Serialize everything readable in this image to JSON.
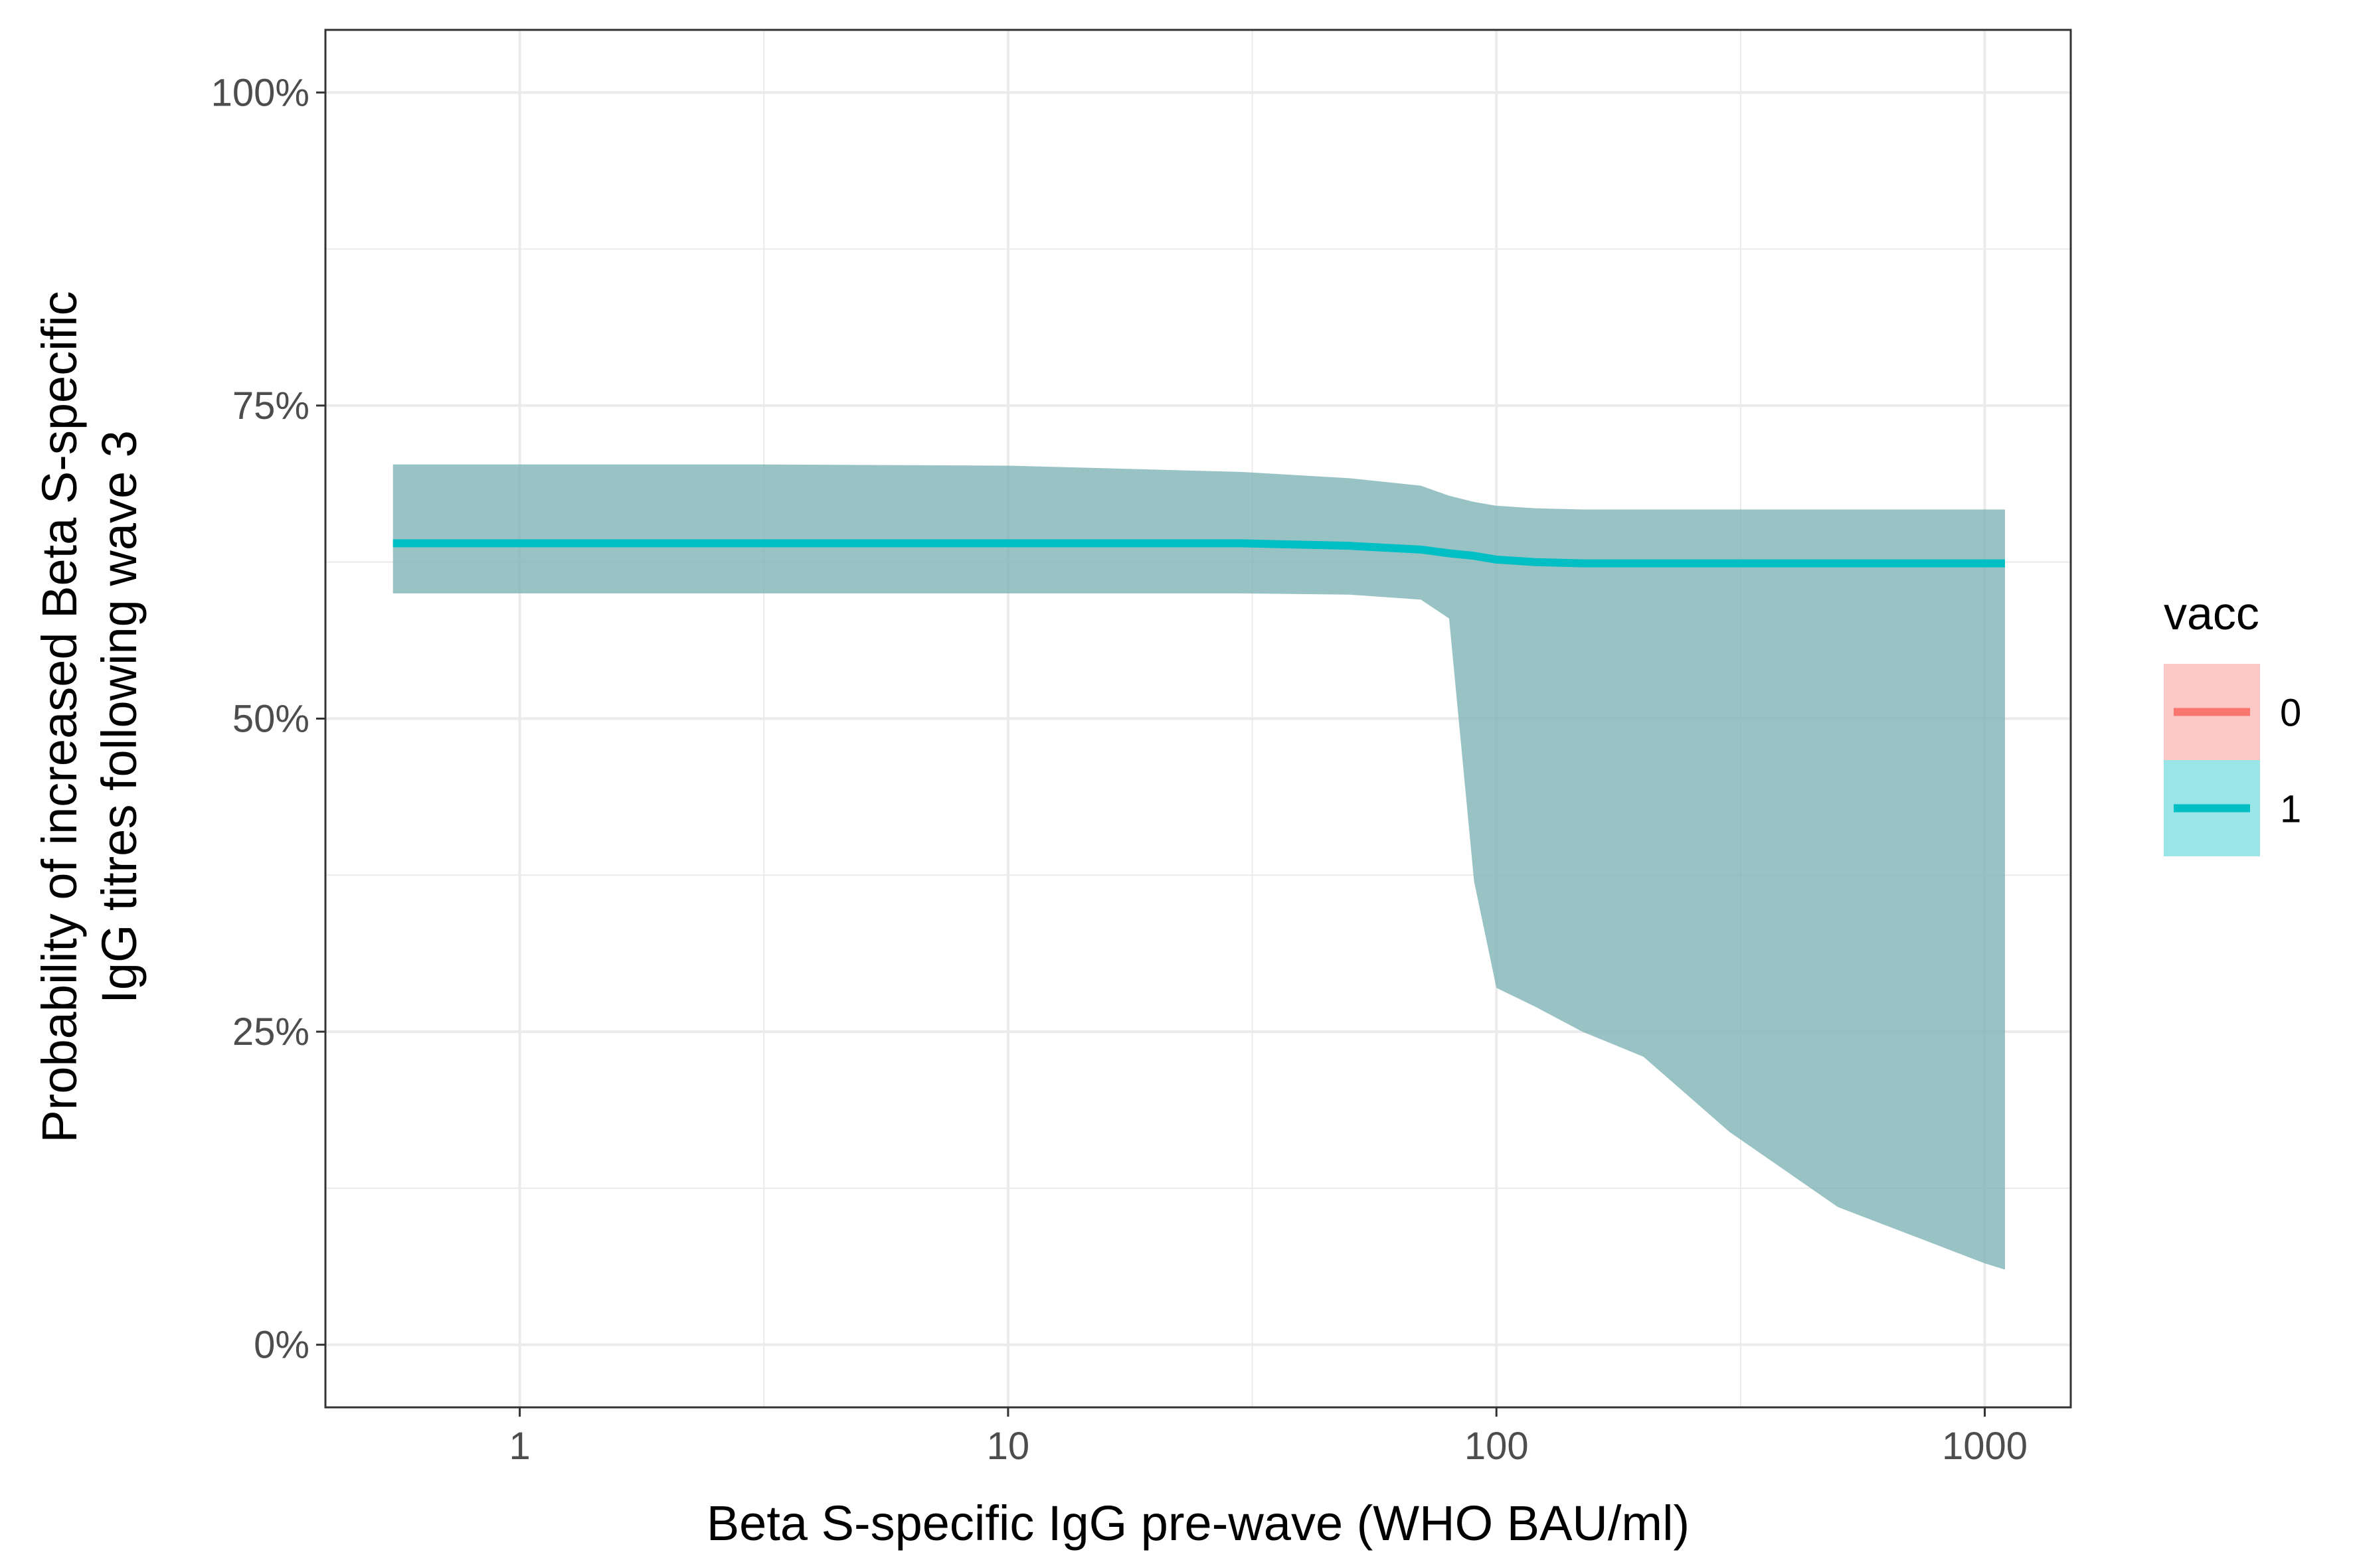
{
  "chart_data": {
    "type": "line",
    "title": "",
    "xlabel": "Beta S-specific IgG pre-wave (WHO BAU/ml)",
    "ylabel_lines": [
      "Probability of increased Beta S-specific",
      "IgG titres following wave 3"
    ],
    "x_scale": "log10",
    "xlim": [
      0.4,
      1500
    ],
    "ylim": [
      -0.05,
      1.05
    ],
    "x_ticks": [
      1,
      10,
      100,
      1000
    ],
    "x_tick_labels": [
      "1",
      "10",
      "100",
      "1000"
    ],
    "y_ticks": [
      0,
      0.25,
      0.5,
      0.75,
      1.0
    ],
    "y_tick_labels": [
      "0%",
      "25%",
      "50%",
      "75%",
      "100%"
    ],
    "grid": true,
    "legend": {
      "title": "vacc",
      "position": "right",
      "entries": [
        {
          "label": "0",
          "line_color": "#F8766D",
          "fill_color": "#F8766D"
        },
        {
          "label": "1",
          "line_color": "#00BFC4",
          "fill_color": "#00BFC4"
        }
      ]
    },
    "series": [
      {
        "name": "1",
        "color": "#00BFC4",
        "ribbon_color": "#7FB3B5",
        "x": [
          0.55,
          1,
          3,
          10,
          30,
          50,
          70,
          80,
          90,
          100,
          120,
          150,
          200,
          300,
          500,
          1000,
          1100
        ],
        "y": [
          0.64,
          0.64,
          0.64,
          0.64,
          0.64,
          0.638,
          0.635,
          0.632,
          0.63,
          0.627,
          0.625,
          0.624,
          0.624,
          0.624,
          0.624,
          0.624,
          0.624
        ],
        "lower": [
          0.6,
          0.6,
          0.6,
          0.6,
          0.6,
          0.599,
          0.595,
          0.58,
          0.37,
          0.285,
          0.27,
          0.25,
          0.23,
          0.17,
          0.11,
          0.065,
          0.06
        ],
        "upper": [
          0.703,
          0.703,
          0.703,
          0.702,
          0.697,
          0.692,
          0.686,
          0.678,
          0.673,
          0.67,
          0.668,
          0.667,
          0.667,
          0.667,
          0.667,
          0.667,
          0.667
        ]
      }
    ]
  }
}
